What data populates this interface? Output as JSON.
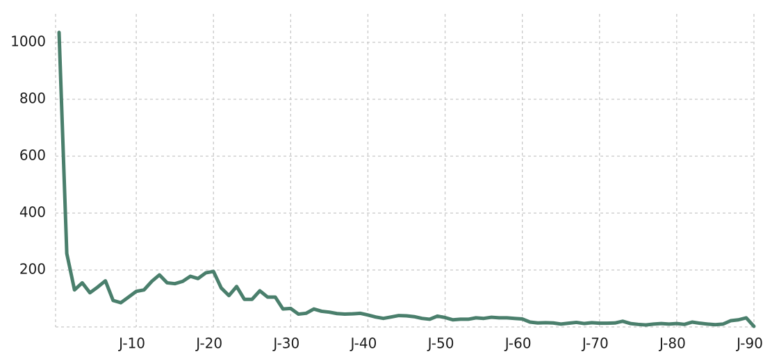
{
  "chart_data": {
    "type": "line",
    "x": [
      0,
      1,
      2,
      3,
      4,
      5,
      6,
      7,
      8,
      9,
      10,
      11,
      12,
      13,
      14,
      15,
      16,
      17,
      18,
      19,
      20,
      21,
      22,
      23,
      24,
      25,
      26,
      27,
      28,
      29,
      30,
      31,
      32,
      33,
      34,
      35,
      36,
      37,
      38,
      39,
      40,
      41,
      42,
      43,
      44,
      45,
      46,
      47,
      48,
      49,
      50,
      51,
      52,
      53,
      54,
      55,
      56,
      57,
      58,
      59,
      60,
      61,
      62,
      63,
      64,
      65,
      66,
      67,
      68,
      69,
      70,
      71,
      72,
      73,
      74,
      75,
      76,
      77,
      78,
      79,
      80,
      81,
      82,
      83,
      84,
      85,
      86,
      87,
      88,
      89,
      90
    ],
    "values": [
      1035,
      258,
      130,
      155,
      120,
      140,
      162,
      93,
      85,
      105,
      125,
      130,
      160,
      183,
      155,
      152,
      160,
      178,
      170,
      190,
      195,
      137,
      110,
      142,
      97,
      97,
      127,
      105,
      105,
      63,
      65,
      45,
      48,
      63,
      55,
      52,
      47,
      45,
      46,
      48,
      42,
      35,
      30,
      35,
      40,
      39,
      36,
      30,
      27,
      38,
      33,
      25,
      27,
      27,
      32,
      30,
      34,
      32,
      32,
      30,
      28,
      17,
      14,
      15,
      14,
      10,
      13,
      16,
      12,
      15,
      13,
      13,
      14,
      20,
      12,
      9,
      7,
      10,
      12,
      10,
      12,
      9,
      17,
      13,
      10,
      8,
      10,
      22,
      25,
      32,
      2
    ],
    "color": "#4a7f6c",
    "xlim": [
      0,
      90
    ],
    "xticks": [
      {
        "value": 10,
        "label": "J-10"
      },
      {
        "value": 20,
        "label": "J-20"
      },
      {
        "value": 30,
        "label": "J-30"
      },
      {
        "value": 40,
        "label": "J-40"
      },
      {
        "value": 50,
        "label": "J-50"
      },
      {
        "value": 60,
        "label": "J-60"
      },
      {
        "value": 70,
        "label": "J-70"
      },
      {
        "value": 80,
        "label": "J-80"
      },
      {
        "value": 90,
        "label": "J-90"
      }
    ],
    "ylim": [
      0,
      1100
    ],
    "yticks": [
      200,
      400,
      600,
      800,
      1000
    ],
    "grid": true
  }
}
